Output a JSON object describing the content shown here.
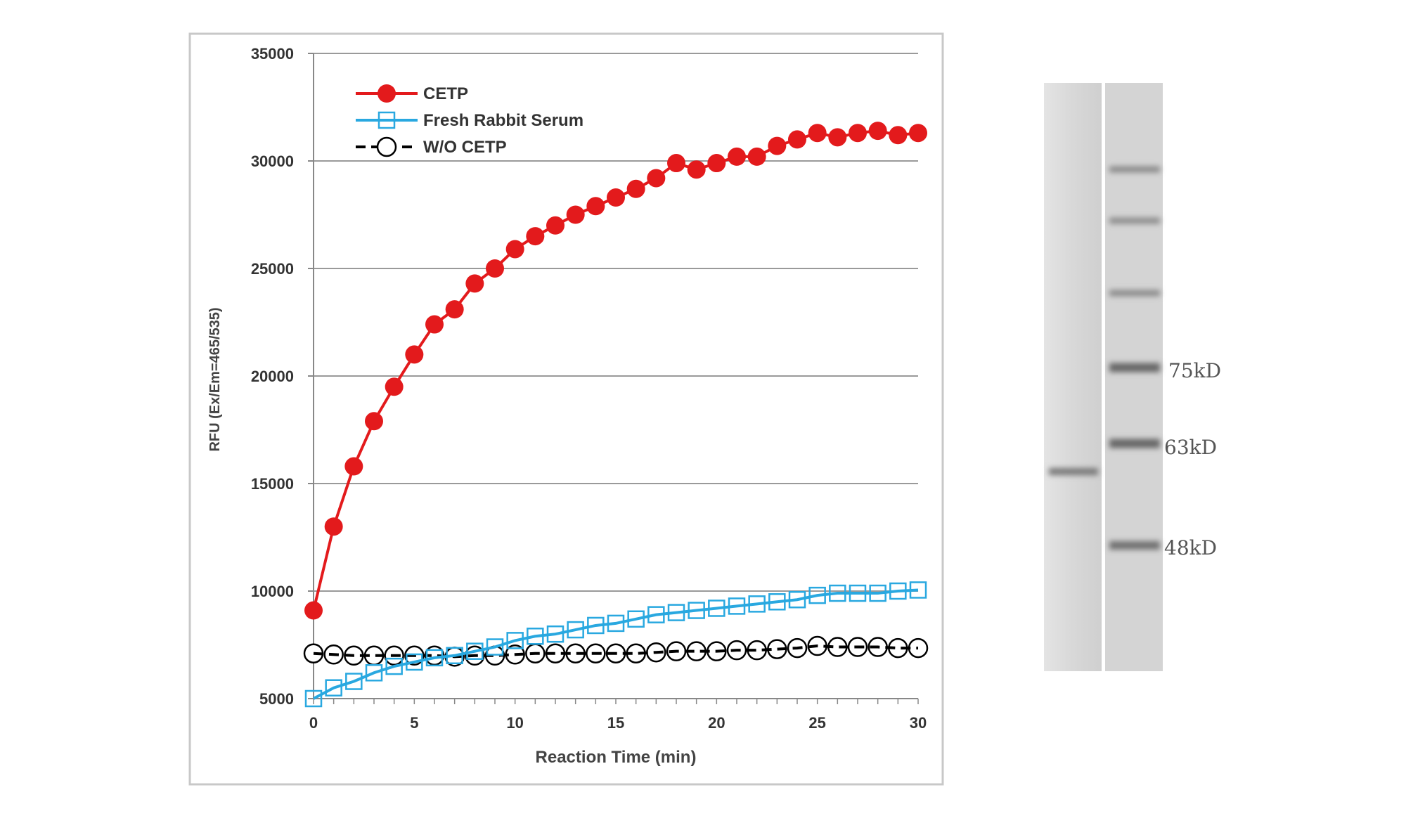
{
  "chart_data": {
    "type": "line",
    "xlabel": "Reaction Time (min)",
    "ylabel": "RFU (Ex/Em=465/535)",
    "xlim": [
      0,
      30
    ],
    "ylim": [
      5000,
      35000
    ],
    "xticks": [
      "0",
      "5",
      "10",
      "15",
      "20",
      "25",
      "30"
    ],
    "yticks": [
      "5000",
      "10000",
      "15000",
      "20000",
      "25000",
      "30000",
      "35000"
    ],
    "grid": "horizontal",
    "legend_position": "top-left",
    "x": [
      0,
      1,
      2,
      3,
      4,
      5,
      6,
      7,
      8,
      9,
      10,
      11,
      12,
      13,
      14,
      15,
      16,
      17,
      18,
      19,
      20,
      21,
      22,
      23,
      24,
      25,
      26,
      27,
      28,
      29,
      30
    ],
    "series": [
      {
        "name": "CETP",
        "color": "#e31a1c",
        "marker": "filled-circle",
        "line": "solid",
        "values": [
          9100,
          13000,
          15800,
          17900,
          19500,
          21000,
          22400,
          23100,
          24300,
          25000,
          25900,
          26500,
          27000,
          27500,
          27900,
          28300,
          28700,
          29200,
          29900,
          29600,
          29900,
          30200,
          30200,
          30700,
          31000,
          31300,
          31100,
          31300,
          31400,
          31200,
          31300
        ]
      },
      {
        "name": "Fresh Rabbit Serum",
        "color": "#29a8e0",
        "marker": "open-square",
        "line": "solid",
        "values": [
          5000,
          5500,
          5800,
          6200,
          6500,
          6700,
          6900,
          7000,
          7200,
          7400,
          7700,
          7900,
          8000,
          8200,
          8400,
          8500,
          8700,
          8900,
          9000,
          9100,
          9200,
          9300,
          9400,
          9500,
          9600,
          9800,
          9900,
          9900,
          9900,
          10000,
          10050
        ]
      },
      {
        "name": "W/O CETP",
        "color": "#000000",
        "marker": "open-circle",
        "line": "dashed",
        "values": [
          7100,
          7050,
          7000,
          7000,
          7000,
          7000,
          7000,
          6950,
          7000,
          7000,
          7050,
          7100,
          7100,
          7100,
          7100,
          7100,
          7100,
          7150,
          7200,
          7200,
          7200,
          7250,
          7250,
          7300,
          7350,
          7450,
          7400,
          7400,
          7400,
          7350,
          7350
        ]
      }
    ]
  },
  "gel": {
    "marker_labels": [
      "75kD",
      "63kD",
      "48kD"
    ]
  }
}
